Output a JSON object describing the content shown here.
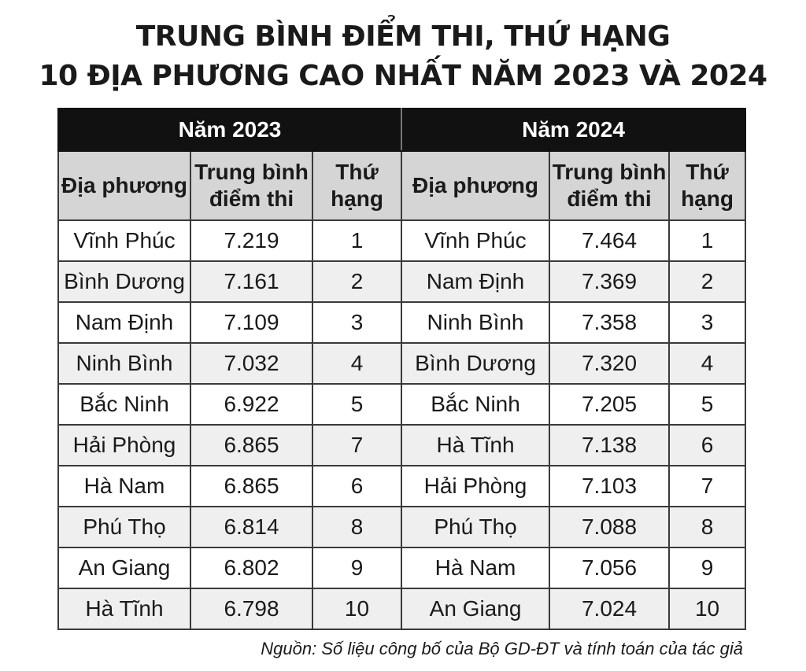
{
  "title": {
    "line1": "TRUNG BÌNH ĐIỂM THI, THỨ HẠNG",
    "line2": "10 ĐỊA PHƯƠNG CAO NHẤT NĂM 2023 VÀ 2024"
  },
  "table": {
    "year_2023": "Năm 2023",
    "year_2024": "Năm 2024",
    "headers": {
      "locality": "Địa phương",
      "avg_l1": "Trung bình",
      "avg_l2": "điểm thi",
      "rank_l1": "Thứ",
      "rank_l2": "hạng"
    },
    "rows": [
      {
        "a_name": "Vĩnh Phúc",
        "a_score": "7.219",
        "a_rank": "1",
        "b_name": "Vĩnh Phúc",
        "b_score": "7.464",
        "b_rank": "1"
      },
      {
        "a_name": "Bình Dương",
        "a_score": "7.161",
        "a_rank": "2",
        "b_name": "Nam Định",
        "b_score": "7.369",
        "b_rank": "2"
      },
      {
        "a_name": "Nam Định",
        "a_score": "7.109",
        "a_rank": "3",
        "b_name": "Ninh Bình",
        "b_score": "7.358",
        "b_rank": "3"
      },
      {
        "a_name": "Ninh Bình",
        "a_score": "7.032",
        "a_rank": "4",
        "b_name": "Bình Dương",
        "b_score": "7.320",
        "b_rank": "4"
      },
      {
        "a_name": "Bắc Ninh",
        "a_score": "6.922",
        "a_rank": "5",
        "b_name": "Bắc Ninh",
        "b_score": "7.205",
        "b_rank": "5"
      },
      {
        "a_name": "Hải Phòng",
        "a_score": "6.865",
        "a_rank": "7",
        "b_name": "Hà Tĩnh",
        "b_score": "7.138",
        "b_rank": "6"
      },
      {
        "a_name": "Hà Nam",
        "a_score": "6.865",
        "a_rank": "6",
        "b_name": "Hải Phòng",
        "b_score": "7.103",
        "b_rank": "7"
      },
      {
        "a_name": "Phú Thọ",
        "a_score": "6.814",
        "a_rank": "8",
        "b_name": "Phú Thọ",
        "b_score": "7.088",
        "b_rank": "8"
      },
      {
        "a_name": "An Giang",
        "a_score": "6.802",
        "a_rank": "9",
        "b_name": "Hà Nam",
        "b_score": "7.056",
        "b_rank": "9"
      },
      {
        "a_name": "Hà Tĩnh",
        "a_score": "6.798",
        "a_rank": "10",
        "b_name": "An Giang",
        "b_score": "7.024",
        "b_rank": "10"
      }
    ]
  },
  "source": "Nguồn: Số liệu công bố của Bộ GD-ĐT và tính toán của tác giả",
  "colors": {
    "header_bg": "#111111",
    "subheader_bg": "#d5d5d5",
    "stripe_bg": "#efefef"
  }
}
